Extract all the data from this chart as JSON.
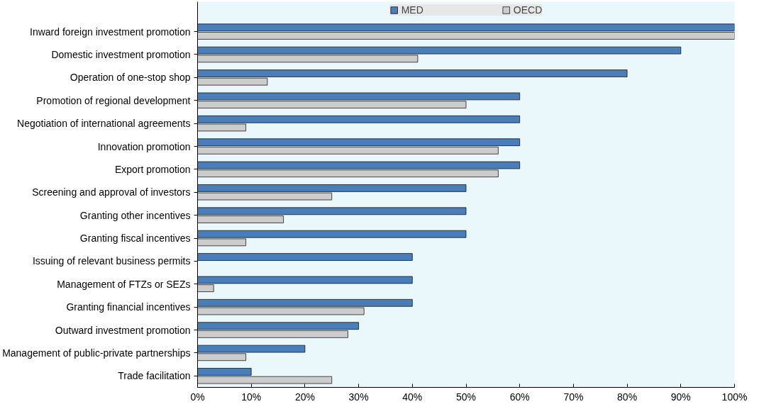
{
  "chart_data": {
    "type": "bar",
    "orientation": "horizontal",
    "categories": [
      "Inward foreign investment promotion",
      "Domestic investment promotion",
      "Operation of one-stop shop",
      "Promotion of regional development",
      "Negotiation of international agreements",
      "Innovation promotion",
      "Export promotion",
      "Screening and approval of investors",
      "Granting other incentives",
      "Granting fiscal incentives",
      "Issuing of relevant business permits",
      "Management of FTZs or SEZs",
      "Granting financial incentives",
      "Outward investment promotion",
      "Management of public-private partnerships",
      "Trade facilitation"
    ],
    "series": [
      {
        "name": "MED",
        "color": "#4a7ebb",
        "values": [
          100,
          90,
          80,
          60,
          60,
          60,
          60,
          50,
          50,
          50,
          40,
          40,
          40,
          30,
          20,
          10
        ]
      },
      {
        "name": "OECD",
        "color": "#cccccc",
        "values": [
          100,
          41,
          13,
          50,
          9,
          56,
          56,
          25,
          16,
          9,
          0,
          3,
          31,
          28,
          9,
          25
        ]
      }
    ],
    "xlim": [
      0,
      100
    ],
    "xticks": [
      {
        "value": 0,
        "label": "0%"
      },
      {
        "value": 10,
        "label": "10%"
      },
      {
        "value": 20,
        "label": "20%"
      },
      {
        "value": 30,
        "label": "30%"
      },
      {
        "value": 40,
        "label": "40%"
      },
      {
        "value": 50,
        "label": "50%"
      },
      {
        "value": 60,
        "label": "60%"
      },
      {
        "value": 70,
        "label": "70%"
      },
      {
        "value": 80,
        "label": "80%"
      },
      {
        "value": 90,
        "label": "90%"
      },
      {
        "value": 100,
        "label": "100%"
      }
    ],
    "grid": false,
    "legend": "top"
  }
}
